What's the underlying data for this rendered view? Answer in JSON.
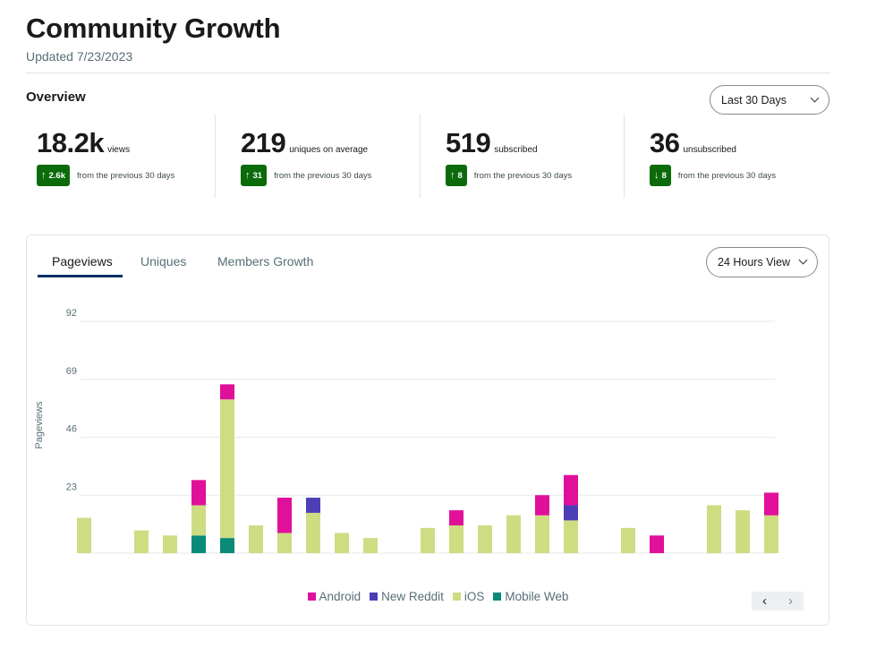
{
  "header": {
    "title": "Community Growth",
    "updated": "Updated 7/23/2023",
    "overview_label": "Overview",
    "range_select": "Last 30 Days"
  },
  "stats": [
    {
      "value": "18.2k",
      "unit": "views",
      "direction": "up",
      "delta": "2.6k",
      "from": "from the previous 30 days"
    },
    {
      "value": "219",
      "unit": "uniques on average",
      "direction": "up",
      "delta": "31",
      "from": "from the previous 30 days"
    },
    {
      "value": "519",
      "unit": "subscribed",
      "direction": "up",
      "delta": "8",
      "from": "from the previous 30 days"
    },
    {
      "value": "36",
      "unit": "unsubscribed",
      "direction": "down",
      "delta": "8",
      "from": "from the previous 30 days"
    }
  ],
  "tabs": [
    {
      "label": "Pageviews",
      "active": true
    },
    {
      "label": "Uniques",
      "active": false
    },
    {
      "label": "Members Growth",
      "active": false
    }
  ],
  "view_select": "24 Hours View",
  "colors": {
    "accent": "#0a3069",
    "badge": "#0b6b0b",
    "android": "#e0109a",
    "new_reddit": "#4c3fb6",
    "ios": "#cedc82",
    "mobile_web": "#0b8a78"
  },
  "chart_data": {
    "type": "bar",
    "stacked": true,
    "ylabel": "Pageviews",
    "ylim": [
      0,
      92
    ],
    "yticks": [
      23,
      46,
      69,
      92
    ],
    "grid": true,
    "legend": "bottom",
    "categories": [
      "",
      "",
      "",
      "",
      "",
      "",
      "",
      "",
      "",
      "",
      "",
      "",
      "",
      "",
      "",
      "",
      "",
      "",
      "",
      "",
      "",
      "",
      "",
      "",
      ""
    ],
    "series": [
      {
        "name": "Mobile Web",
        "color": "#0b8a78",
        "values": [
          0,
          0,
          0,
          0,
          7,
          6,
          0,
          0,
          0,
          0,
          0,
          0,
          0,
          0,
          0,
          0,
          0,
          0,
          0,
          0,
          0,
          0,
          0,
          0,
          0
        ]
      },
      {
        "name": "iOS",
        "color": "#cedc82",
        "values": [
          14,
          0,
          9,
          7,
          12,
          55,
          11,
          8,
          16,
          8,
          6,
          0,
          10,
          11,
          11,
          15,
          15,
          13,
          0,
          10,
          0,
          0,
          19,
          17,
          15
        ]
      },
      {
        "name": "New Reddit",
        "color": "#4c3fb6",
        "values": [
          0,
          0,
          0,
          0,
          0,
          0,
          0,
          0,
          6,
          0,
          0,
          0,
          0,
          0,
          0,
          0,
          0,
          6,
          0,
          0,
          0,
          0,
          0,
          0,
          0
        ]
      },
      {
        "name": "Android",
        "color": "#e0109a",
        "values": [
          0,
          0,
          0,
          0,
          10,
          6,
          0,
          14,
          0,
          0,
          0,
          0,
          0,
          6,
          0,
          0,
          8,
          12,
          0,
          0,
          7,
          0,
          0,
          0,
          9
        ]
      }
    ],
    "legend_order": [
      "Android",
      "New Reddit",
      "iOS",
      "Mobile Web"
    ]
  },
  "pager": {
    "prev": "‹",
    "next": "›"
  }
}
